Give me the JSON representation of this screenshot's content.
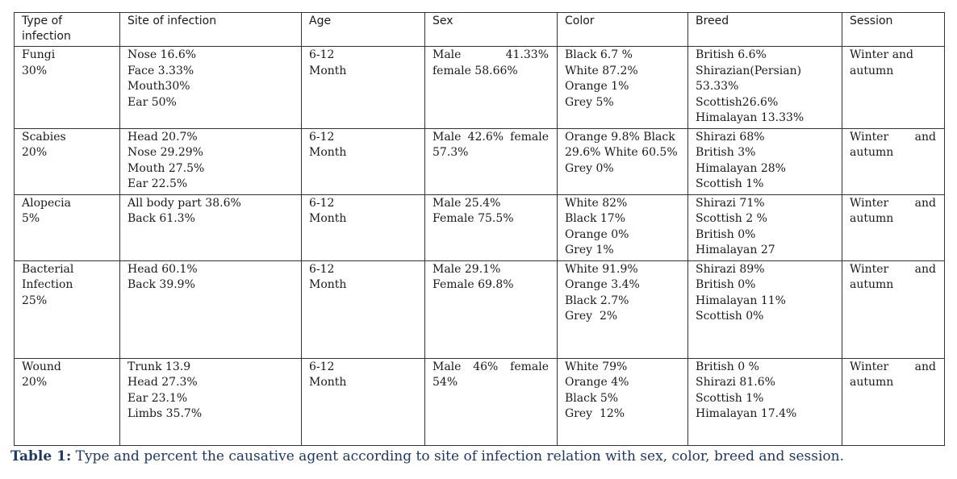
{
  "headers": [
    "Type of infection",
    "Site of infection",
    "Age",
    "Sex",
    "Color",
    "Breed",
    "Session"
  ],
  "rows": [
    {
      "type": [
        "Fungi",
        "30%"
      ],
      "site": [
        "Nose 16.6%",
        "Face 3.33%",
        "Mouth30%",
        "Ear 50%"
      ],
      "age": [
        "6-12",
        "Month"
      ],
      "sex_left": "Male",
      "sex_right": "41.33%",
      "sex_rest": "female 58.66%",
      "color": [
        "Black 6.7 %",
        "White 87.2%",
        "Orange 1%",
        "Grey 5%"
      ],
      "breed": [
        "British 6.6%",
        "Shirazian(Persian)",
        "53.33%",
        "Scottish26.6%",
        "Himalayan 13.33%"
      ],
      "session_a": "Winter and",
      "session_b": "autumn"
    },
    {
      "type": [
        "Scabies",
        "20%"
      ],
      "site": [
        "Head 20.7%",
        "Nose 29.29%",
        "Mouth 27.5%",
        "Ear 22.5%"
      ],
      "age": [
        "6-12",
        "Month"
      ],
      "sex": "Male 42.6% female 57.3%",
      "color_text": "Orange 9.8% Black 29.6% White 60.5% Grey 0%",
      "breed": [
        "Shirazi 68%",
        "British 3%",
        "Himalayan 28%",
        "Scottish 1%"
      ],
      "session_left": "Winter",
      "session_right": "and",
      "session_b": "autumn"
    },
    {
      "type": [
        "Alopecia",
        "5%"
      ],
      "site": [
        "All body part 38.6%",
        "Back 61.3%"
      ],
      "age": [
        "6-12",
        "Month"
      ],
      "sex_lines": [
        "Male 25.4%",
        "Female 75.5%"
      ],
      "color": [
        "White 82%",
        "Black 17%",
        "Orange 0%",
        "Grey 1%"
      ],
      "breed": [
        "Shirazi 71%",
        "Scottish 2 %",
        "British 0%",
        "Himalayan 27"
      ],
      "session_left": "Winter",
      "session_right": "and",
      "session_b": "autumn"
    },
    {
      "type": [
        "Bacterial",
        "Infection",
        "25%"
      ],
      "site": [
        "Head 60.1%",
        "Back 39.9%"
      ],
      "age": [
        "6-12",
        "Month"
      ],
      "sex_lines": [
        "Male 29.1%",
        "Female 69.8%"
      ],
      "color": [
        "White 91.9%",
        "Orange 3.4%",
        "Black 2.7%",
        "Grey  2%"
      ],
      "breed": [
        "Shirazi 89%",
        "British 0%",
        "Himalayan 11%",
        "Scottish 0%"
      ],
      "session_left": "Winter",
      "session_right": "and",
      "session_b": "autumn"
    },
    {
      "type": [
        "Wound",
        "20%"
      ],
      "site": [
        "Trunk 13.9",
        "Head 27.3%",
        "Ear 23.1%",
        "Limbs 35.7%"
      ],
      "age": [
        "6-12",
        "Month"
      ],
      "sex": "Male 46% female 54%",
      "color": [
        "White 79%",
        "Orange 4%",
        "Black 5%",
        "Grey  12%"
      ],
      "breed": [
        "British 0 %",
        "Shirazi 81.6%",
        "Scottish 1%",
        "Himalayan 17.4%"
      ],
      "session_left": "Winter",
      "session_right": "and",
      "session_b": "autumn"
    }
  ],
  "caption": {
    "label": "Table 1:",
    "text": " Type and percent the causative agent according to site of infection relation with sex, color, breed and session."
  }
}
